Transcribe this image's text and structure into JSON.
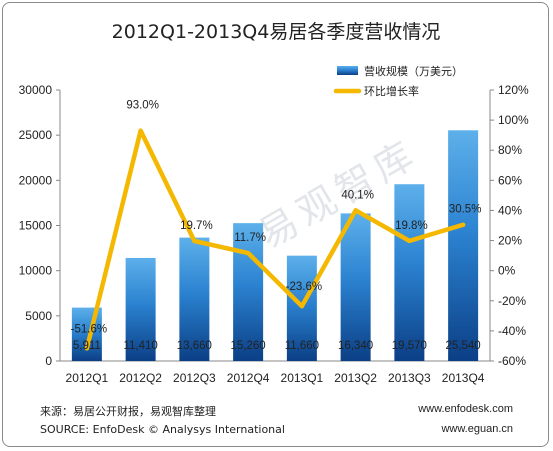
{
  "chart_data": {
    "type": "bar",
    "title": "2012Q1-2013Q4易居各季度营收情况",
    "categories": [
      "2012Q1",
      "2012Q2",
      "2012Q3",
      "2012Q4",
      "2013Q1",
      "2013Q2",
      "2013Q3",
      "2013Q4"
    ],
    "series": [
      {
        "name": "营收规模（万美元）",
        "type": "bar",
        "axis": "left",
        "values": [
          5911,
          11410,
          13660,
          15260,
          11660,
          16340,
          19570,
          25540
        ],
        "labels": [
          "5,911",
          "11,410",
          "13,660",
          "15,260",
          "11,660",
          "16,340",
          "19,570",
          "25,540"
        ]
      },
      {
        "name": "环比增长率",
        "type": "line",
        "axis": "right",
        "values": [
          -51.6,
          93.0,
          19.7,
          11.7,
          -23.6,
          40.1,
          19.8,
          30.5
        ],
        "labels": [
          "-51.6%",
          "93.0%",
          "19.7%",
          "11.7%",
          "-23.6%",
          "40.1%",
          "19.8%",
          "30.5%"
        ]
      }
    ],
    "ylim": [
      0,
      30000
    ],
    "yticks": [
      "0",
      "5000",
      "10000",
      "15000",
      "20000",
      "25000",
      "30000"
    ],
    "y2lim": [
      -60,
      120
    ],
    "y2ticks": [
      "-60%",
      "-40%",
      "-20%",
      "0%",
      "20%",
      "40%",
      "60%",
      "80%",
      "100%",
      "120%"
    ],
    "grid": false,
    "legend_position": "top-right",
    "colors": {
      "bar_top": "#4fa3e0",
      "bar_mid": "#1f74c5",
      "bar_bottom": "#0b3f86",
      "line": "#f5b800"
    }
  },
  "watermark": "易观智库",
  "footer": {
    "source_cn": "来源：易居公开财报，易观智库整理",
    "source_en": "SOURCE: EnfoDesk © Analysys International",
    "url1": "www.enfodesk.com",
    "url2": "www.eguan.cn"
  }
}
